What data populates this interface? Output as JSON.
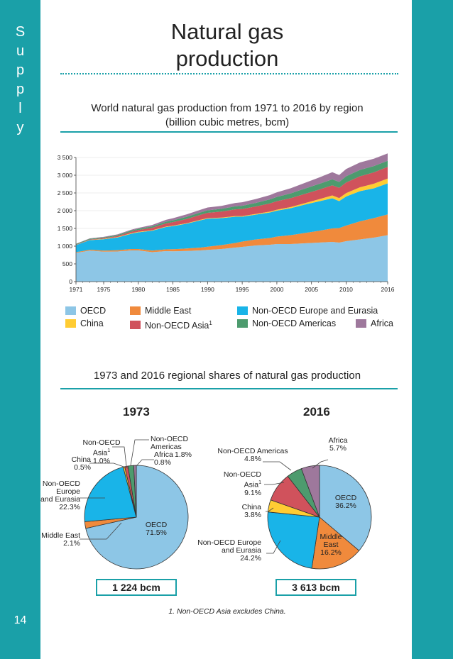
{
  "side_label": [
    "S",
    "u",
    "p",
    "p",
    "l",
    "y"
  ],
  "page_number": "14",
  "page_title_line1": "Natural gas",
  "page_title_line2": "production",
  "colors": {
    "teal": "#1aa0a8",
    "oecd": "#8dc6e6",
    "middle_east": "#f08a3c",
    "non_oecd_europe": "#19b4e8",
    "china": "#ffcc33",
    "non_oecd_asia": "#d0525c",
    "non_oecd_americas": "#4d9b6e",
    "africa": "#9e789c"
  },
  "area_chart": {
    "title_line1": "World natural gas production from 1971 to 2016 by region",
    "title_line2": "(billion cubic metres, bcm)"
  },
  "legend": {
    "oecd": "OECD",
    "china": "China",
    "middle_east": "Middle East",
    "non_oecd_asia": "Non-OECD Asia",
    "non_oecd_asia_sup": "1",
    "non_oecd_europe": "Non-OECD Europe and Eurasia",
    "non_oecd_americas": "Non-OECD Americas",
    "africa": "Africa"
  },
  "pie_section": {
    "title": "1973 and 2016 regional shares of natural gas production",
    "year_1973": "1973",
    "year_2016": "2016",
    "total_1973": "1 224 bcm",
    "total_2016": "3 613 bcm"
  },
  "pie_labels_1973": {
    "oecd_name": "OECD",
    "oecd_pct": "71.5%",
    "me_name": "Middle East",
    "me_pct": "2.1%",
    "eu_l1": "Non-OECD",
    "eu_l2": "Europe",
    "eu_l3": "and Eurasia",
    "eu_pct": "22.3%",
    "china_name": "China",
    "china_pct": "0.5%",
    "asia_name": "Non-OECD Asia",
    "asia_sup": "1",
    "asia_pct": "1.0%",
    "americas_name": "Non-OECD Americas",
    "americas_pct": "1.8%",
    "africa_name": "Africa",
    "africa_pct": "0.8%"
  },
  "pie_labels_2016": {
    "oecd_name": "OECD",
    "oecd_pct": "36.2%",
    "me_l1": "Middle",
    "me_l2": "East",
    "me_pct": "16.2%",
    "eu_l1": "Non-OECD Europe",
    "eu_l2": "and Eurasia",
    "eu_pct": "24.2%",
    "china_name": "China",
    "china_pct": "3.8%",
    "asia_name": "Non-OECD Asia",
    "asia_sup": "1",
    "asia_pct": "9.1%",
    "americas_name": "Non-OECD Americas",
    "americas_pct": "4.8%",
    "africa_name": "Africa",
    "africa_pct": "5.7%"
  },
  "footnote": "1. Non-OECD Asia excludes China.",
  "chart_data": [
    {
      "type": "area",
      "stacked": true,
      "title": "World natural gas production from 1971 to 2016 by region (billion cubic metres, bcm)",
      "xlabel": "",
      "ylabel": "",
      "x": [
        1971,
        1973,
        1975,
        1977,
        1979,
        1980,
        1982,
        1984,
        1985,
        1987,
        1989,
        1990,
        1992,
        1994,
        1995,
        1997,
        1999,
        2000,
        2002,
        2004,
        2006,
        2008,
        2009,
        2010,
        2012,
        2014,
        2016
      ],
      "xticks": [
        "1971",
        "1975",
        "1980",
        "1985",
        "1990",
        "1995",
        "2000",
        "2005",
        "2010",
        "2016"
      ],
      "xtick_values": [
        1971,
        1975,
        1980,
        1985,
        1990,
        1995,
        2000,
        2005,
        2010,
        2016
      ],
      "yticks": [
        "0",
        "500",
        "1 000",
        "1 500",
        "2 000",
        "2 500",
        "3 000",
        "3 500"
      ],
      "ylim": [
        0,
        3500
      ],
      "series": [
        {
          "name": "OECD",
          "values": [
            810,
            875,
            845,
            850,
            880,
            880,
            830,
            860,
            855,
            865,
            880,
            895,
            920,
            960,
            980,
            1020,
            1040,
            1060,
            1060,
            1080,
            1100,
            1120,
            1100,
            1140,
            1190,
            1240,
            1310
          ]
        },
        {
          "name": "Middle East",
          "values": [
            20,
            25,
            30,
            35,
            40,
            40,
            45,
            50,
            60,
            70,
            80,
            90,
            110,
            130,
            150,
            170,
            190,
            210,
            250,
            290,
            330,
            380,
            410,
            440,
            510,
            550,
            585
          ]
        },
        {
          "name": "Non-OECD Europe and Eurasia",
          "values": [
            200,
            270,
            320,
            360,
            430,
            470,
            560,
            630,
            650,
            700,
            770,
            790,
            760,
            740,
            700,
            700,
            720,
            730,
            760,
            800,
            830,
            850,
            760,
            820,
            850,
            840,
            875
          ]
        },
        {
          "name": "China",
          "values": [
            3,
            6,
            9,
            12,
            14,
            14,
            12,
            12,
            12,
            13,
            15,
            15,
            16,
            17,
            18,
            20,
            25,
            27,
            33,
            40,
            58,
            80,
            85,
            95,
            110,
            130,
            137
          ]
        },
        {
          "name": "Non-OECD Asia",
          "values": [
            10,
            12,
            20,
            30,
            45,
            50,
            70,
            90,
            100,
            120,
            140,
            150,
            170,
            190,
            200,
            210,
            230,
            240,
            250,
            260,
            270,
            285,
            290,
            300,
            310,
            320,
            329
          ]
        },
        {
          "name": "Non-OECD Americas",
          "values": [
            20,
            22,
            25,
            28,
            32,
            34,
            40,
            48,
            52,
            60,
            68,
            70,
            75,
            85,
            90,
            100,
            115,
            120,
            135,
            150,
            160,
            170,
            165,
            175,
            180,
            178,
            173
          ]
        },
        {
          "name": "Africa",
          "values": [
            5,
            10,
            14,
            18,
            25,
            28,
            40,
            52,
            60,
            70,
            75,
            80,
            85,
            95,
            100,
            110,
            120,
            130,
            145,
            160,
            180,
            200,
            195,
            205,
            210,
            205,
            206
          ]
        }
      ]
    },
    {
      "type": "pie",
      "title": "1973",
      "total": "1 224 bcm",
      "labels": [
        "OECD",
        "Middle East",
        "Non-OECD Europe and Eurasia",
        "China",
        "Non-OECD Asia",
        "Non-OECD Americas",
        "Africa"
      ],
      "values": [
        71.5,
        2.1,
        22.3,
        0.5,
        1.0,
        1.8,
        0.8
      ]
    },
    {
      "type": "pie",
      "title": "2016",
      "total": "3 613 bcm",
      "labels": [
        "OECD",
        "Middle East",
        "Non-OECD Europe and Eurasia",
        "China",
        "Non-OECD Asia",
        "Non-OECD Americas",
        "Africa"
      ],
      "values": [
        36.2,
        16.2,
        24.2,
        3.8,
        9.1,
        4.8,
        5.7
      ]
    }
  ]
}
